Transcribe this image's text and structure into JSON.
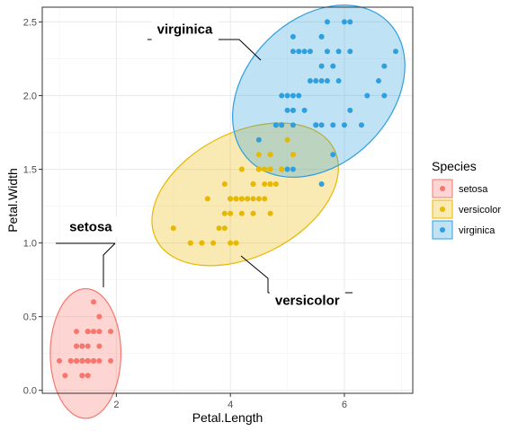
{
  "chart_data": {
    "type": "scatter",
    "xlabel": "Petal.Length",
    "ylabel": "Petal.Width",
    "xlim": [
      0.7,
      7.2
    ],
    "ylim": [
      -0.02,
      2.6
    ],
    "x_ticks": [
      2,
      4,
      6
    ],
    "x_tick_labels": [
      "2",
      "4",
      "6"
    ],
    "y_ticks": [
      0.0,
      0.5,
      1.0,
      1.5,
      2.0,
      2.5
    ],
    "y_tick_labels": [
      "0.0",
      "0.5",
      "1.0",
      "1.5",
      "2.0",
      "2.5"
    ],
    "grid": true,
    "legend": {
      "title": "Species",
      "position": "right"
    },
    "series": [
      {
        "name": "setosa",
        "color": "#F8766D",
        "ellipse": {
          "cx": 1.46,
          "cy": 0.25,
          "rx": 0.62,
          "ry": 0.44
        },
        "annotation": {
          "label": "setosa",
          "x": 1.55,
          "y": 1.08
        },
        "points": [
          [
            1.4,
            0.2
          ],
          [
            1.4,
            0.2
          ],
          [
            1.3,
            0.2
          ],
          [
            1.5,
            0.2
          ],
          [
            1.4,
            0.2
          ],
          [
            1.7,
            0.4
          ],
          [
            1.4,
            0.3
          ],
          [
            1.5,
            0.2
          ],
          [
            1.4,
            0.2
          ],
          [
            1.5,
            0.1
          ],
          [
            1.5,
            0.2
          ],
          [
            1.6,
            0.2
          ],
          [
            1.4,
            0.1
          ],
          [
            1.1,
            0.1
          ],
          [
            1.2,
            0.2
          ],
          [
            1.5,
            0.4
          ],
          [
            1.3,
            0.4
          ],
          [
            1.4,
            0.3
          ],
          [
            1.7,
            0.3
          ],
          [
            1.5,
            0.3
          ],
          [
            1.7,
            0.2
          ],
          [
            1.5,
            0.4
          ],
          [
            1.0,
            0.2
          ],
          [
            1.7,
            0.5
          ],
          [
            1.9,
            0.2
          ],
          [
            1.6,
            0.2
          ],
          [
            1.6,
            0.4
          ],
          [
            1.5,
            0.2
          ],
          [
            1.4,
            0.2
          ],
          [
            1.6,
            0.2
          ],
          [
            1.6,
            0.2
          ],
          [
            1.5,
            0.4
          ],
          [
            1.5,
            0.1
          ],
          [
            1.4,
            0.2
          ],
          [
            1.5,
            0.2
          ],
          [
            1.2,
            0.2
          ],
          [
            1.3,
            0.2
          ],
          [
            1.4,
            0.1
          ],
          [
            1.3,
            0.2
          ],
          [
            1.5,
            0.2
          ],
          [
            1.3,
            0.3
          ],
          [
            1.3,
            0.3
          ],
          [
            1.3,
            0.2
          ],
          [
            1.6,
            0.6
          ],
          [
            1.9,
            0.4
          ],
          [
            1.4,
            0.3
          ],
          [
            1.6,
            0.2
          ],
          [
            1.4,
            0.2
          ],
          [
            1.5,
            0.2
          ],
          [
            1.4,
            0.2
          ]
        ]
      },
      {
        "name": "versicolor",
        "color": "#E7B800",
        "ellipse": {
          "cx": 4.26,
          "cy": 1.33,
          "rx": 1.75,
          "ry": 0.42,
          "angle": -27
        },
        "annotation": {
          "label": "versicolor",
          "x": 5.35,
          "y": 0.58
        },
        "points": [
          [
            4.7,
            1.4
          ],
          [
            4.5,
            1.5
          ],
          [
            4.9,
            1.5
          ],
          [
            4.0,
            1.3
          ],
          [
            4.6,
            1.5
          ],
          [
            4.5,
            1.3
          ],
          [
            4.7,
            1.6
          ],
          [
            3.3,
            1.0
          ],
          [
            4.6,
            1.3
          ],
          [
            3.9,
            1.4
          ],
          [
            3.5,
            1.0
          ],
          [
            4.2,
            1.5
          ],
          [
            4.0,
            1.0
          ],
          [
            4.7,
            1.4
          ],
          [
            3.6,
            1.3
          ],
          [
            4.4,
            1.4
          ],
          [
            4.5,
            1.5
          ],
          [
            4.1,
            1.0
          ],
          [
            4.5,
            1.5
          ],
          [
            3.9,
            1.1
          ],
          [
            4.8,
            1.8
          ],
          [
            4.0,
            1.3
          ],
          [
            4.9,
            1.5
          ],
          [
            4.7,
            1.2
          ],
          [
            4.3,
            1.3
          ],
          [
            4.4,
            1.4
          ],
          [
            4.8,
            1.4
          ],
          [
            5.0,
            1.7
          ],
          [
            4.5,
            1.5
          ],
          [
            3.5,
            1.0
          ],
          [
            3.8,
            1.1
          ],
          [
            3.7,
            1.0
          ],
          [
            3.9,
            1.2
          ],
          [
            5.1,
            1.6
          ],
          [
            4.5,
            1.5
          ],
          [
            4.5,
            1.6
          ],
          [
            4.7,
            1.5
          ],
          [
            4.4,
            1.3
          ],
          [
            4.1,
            1.3
          ],
          [
            4.0,
            1.3
          ],
          [
            4.4,
            1.2
          ],
          [
            4.6,
            1.4
          ],
          [
            4.0,
            1.2
          ],
          [
            3.3,
            1.0
          ],
          [
            4.2,
            1.3
          ],
          [
            4.2,
            1.2
          ],
          [
            4.2,
            1.3
          ],
          [
            4.3,
            1.3
          ],
          [
            3.0,
            1.1
          ],
          [
            4.1,
            1.3
          ]
        ]
      },
      {
        "name": "virginica",
        "color": "#2E9FDF",
        "ellipse": {
          "cx": 5.55,
          "cy": 2.03,
          "rx": 1.72,
          "ry": 0.49,
          "angle": -45
        },
        "annotation": {
          "label": "virginica",
          "x": 3.2,
          "y": 2.42
        },
        "points": [
          [
            6.0,
            2.5
          ],
          [
            5.1,
            1.9
          ],
          [
            5.9,
            2.1
          ],
          [
            5.6,
            1.8
          ],
          [
            5.8,
            2.2
          ],
          [
            6.6,
            2.1
          ],
          [
            4.5,
            1.7
          ],
          [
            6.3,
            1.8
          ],
          [
            5.8,
            1.8
          ],
          [
            6.1,
            2.5
          ],
          [
            5.1,
            2.0
          ],
          [
            5.3,
            1.9
          ],
          [
            5.5,
            2.1
          ],
          [
            5.0,
            2.0
          ],
          [
            5.1,
            2.4
          ],
          [
            5.3,
            2.3
          ],
          [
            5.5,
            1.8
          ],
          [
            6.7,
            2.2
          ],
          [
            6.9,
            2.3
          ],
          [
            5.0,
            1.5
          ],
          [
            5.7,
            2.3
          ],
          [
            4.9,
            2.0
          ],
          [
            6.7,
            2.0
          ],
          [
            4.9,
            1.8
          ],
          [
            5.7,
            2.1
          ],
          [
            6.0,
            1.8
          ],
          [
            4.8,
            1.8
          ],
          [
            4.9,
            1.8
          ],
          [
            5.6,
            2.1
          ],
          [
            5.8,
            1.6
          ],
          [
            6.1,
            1.9
          ],
          [
            6.4,
            2.0
          ],
          [
            5.6,
            2.2
          ],
          [
            5.1,
            1.5
          ],
          [
            5.6,
            1.4
          ],
          [
            6.1,
            2.3
          ],
          [
            5.6,
            2.4
          ],
          [
            5.5,
            1.8
          ],
          [
            4.8,
            1.8
          ],
          [
            5.4,
            2.1
          ],
          [
            5.6,
            2.4
          ],
          [
            5.1,
            2.3
          ],
          [
            5.1,
            1.9
          ],
          [
            5.9,
            2.3
          ],
          [
            5.7,
            2.5
          ],
          [
            5.2,
            2.3
          ],
          [
            5.0,
            1.9
          ],
          [
            5.2,
            2.0
          ],
          [
            5.4,
            2.3
          ],
          [
            5.1,
            1.8
          ]
        ]
      }
    ]
  }
}
